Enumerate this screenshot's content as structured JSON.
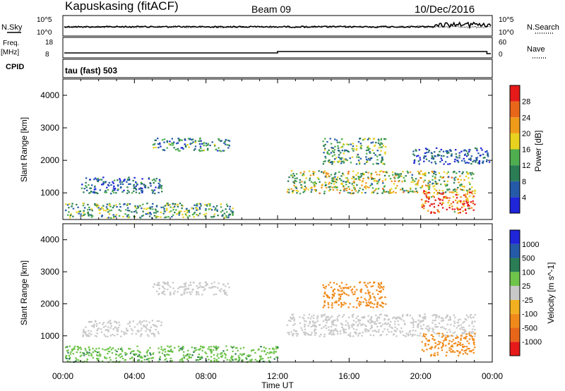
{
  "header": {
    "station": "Kapuskasing (fitACF)",
    "beam": "Beam 09",
    "date": "10/Dec/2016"
  },
  "status_panels": {
    "nsky_label": "N.Sky",
    "nsearch_label": "N.Search",
    "noise_ticks": [
      "10^5",
      "10^0"
    ],
    "freq_label_1": "Freq.",
    "freq_label_2": "[MHz]",
    "freq_ticks": [
      "18",
      "8"
    ],
    "nave_label": "Nave",
    "nave_ticks": [
      "60",
      "0"
    ],
    "cpid_label": "CPID",
    "cpid_value": "tau (fast) 503"
  },
  "x_axis": {
    "label": "Time UT",
    "ticks": [
      "00:00",
      "04:00",
      "08:00",
      "12:00",
      "16:00",
      "20:00",
      "00:00"
    ],
    "range_hours": [
      0,
      24
    ]
  },
  "chart_data": [
    {
      "type": "heatmap",
      "title": "Power",
      "ylabel": "Slant Range [km]",
      "yticks": [
        "1000",
        "2000",
        "3000",
        "4000"
      ],
      "ylim": [
        180,
        4500
      ],
      "colorbar": {
        "label": "Power [dB]",
        "ticks": [
          "4",
          "8",
          "12",
          "16",
          "20",
          "24",
          "28"
        ],
        "range": [
          0,
          32
        ],
        "colors": [
          "#1f25d8",
          "#245aa8",
          "#2a7d55",
          "#4fae4f",
          "#e8d21f",
          "#f09a1a",
          "#e8661a",
          "#e61a1a"
        ]
      },
      "regions": [
        {
          "t0": 0.1,
          "t1": 9.5,
          "r0": 250,
          "r1": 700,
          "value": 12
        },
        {
          "t0": 1.0,
          "t1": 5.5,
          "r0": 1000,
          "r1": 1500,
          "value": 8
        },
        {
          "t0": 5.0,
          "t1": 9.3,
          "r0": 2300,
          "r1": 2700,
          "value": 10
        },
        {
          "t0": 12.5,
          "t1": 23.0,
          "r0": 1000,
          "r1": 1700,
          "value": 16
        },
        {
          "t0": 14.5,
          "t1": 18.0,
          "r0": 1900,
          "r1": 2700,
          "value": 12
        },
        {
          "t0": 19.5,
          "t1": 23.8,
          "r0": 1900,
          "r1": 2400,
          "value": 6
        },
        {
          "t0": 20.0,
          "t1": 23.0,
          "r0": 400,
          "r1": 1100,
          "value": 28
        }
      ]
    },
    {
      "type": "heatmap",
      "title": "Velocity",
      "ylabel": "Slant Range [km]",
      "yticks": [
        "1000",
        "2000",
        "3000",
        "4000"
      ],
      "ylim": [
        180,
        4500
      ],
      "colorbar": {
        "label": "Velocity [m s^-1]",
        "ticks": [
          "1000",
          "500",
          "100",
          "25",
          "-25",
          "-100",
          "-500",
          "-1000"
        ],
        "colors": [
          "#1f25d8",
          "#245aa8",
          "#2a7d55",
          "#6fc44a",
          "#c8c8c8",
          "#f0b020",
          "#f08a1a",
          "#e8661a",
          "#e61a1a"
        ]
      },
      "regions": [
        {
          "t0": 0.1,
          "t1": 12.0,
          "r0": 200,
          "r1": 700,
          "value": 80
        },
        {
          "t0": 1.0,
          "t1": 5.5,
          "r0": 1000,
          "r1": 1500,
          "value": 0
        },
        {
          "t0": 5.0,
          "t1": 9.3,
          "r0": 2300,
          "r1": 2700,
          "value": 0
        },
        {
          "t0": 12.5,
          "t1": 23.0,
          "r0": 1000,
          "r1": 1700,
          "value": 0
        },
        {
          "t0": 14.5,
          "t1": 18.0,
          "r0": 1900,
          "r1": 2700,
          "value": -150
        },
        {
          "t0": 20.0,
          "t1": 23.0,
          "r0": 400,
          "r1": 1100,
          "value": -200
        }
      ]
    }
  ]
}
